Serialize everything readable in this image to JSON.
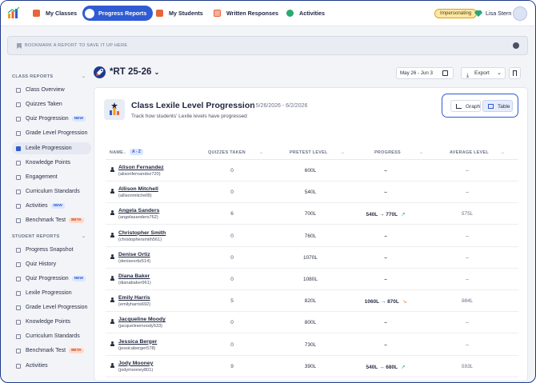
{
  "nav": {
    "items": [
      {
        "label": "My Classes",
        "icon": "classes-icon",
        "color": "#e8643a"
      },
      {
        "label": "Progress Reports",
        "icon": "progress-icon",
        "active": true
      },
      {
        "label": "My Students",
        "icon": "students-icon",
        "color": "#e8643a"
      },
      {
        "label": "Written Responses",
        "icon": "written-icon",
        "color": "#e8643a"
      },
      {
        "label": "Activities",
        "icon": "activities-icon",
        "color": "#2aa874"
      }
    ],
    "impersonating": "Impersonating",
    "user_name": "Lisa Stern"
  },
  "bookmark_bar": {
    "text": "BOOKMARK A REPORT TO SAVE IT UP HERE"
  },
  "sidebar": {
    "class_reports_heading": "CLASS REPORTS",
    "class_reports": [
      {
        "label": "Class Overview"
      },
      {
        "label": "Quizzes Taken"
      },
      {
        "label": "Quiz Progression",
        "tag": "NEW"
      },
      {
        "label": "Grade Level Progression"
      },
      {
        "label": "Lexile Progression",
        "active": true
      },
      {
        "label": "Knowledge Points"
      },
      {
        "label": "Engagement"
      },
      {
        "label": "Curriculum Standards"
      },
      {
        "label": "Activities",
        "tag": "NEW"
      },
      {
        "label": "Benchmark Test",
        "tag": "BETA"
      }
    ],
    "student_reports_heading": "STUDENT REPORTS",
    "student_reports": [
      {
        "label": "Progress Snapshot"
      },
      {
        "label": "Quiz History"
      },
      {
        "label": "Quiz Progression",
        "tag": "NEW"
      },
      {
        "label": "Lexile Progression"
      },
      {
        "label": "Grade Level Progression"
      },
      {
        "label": "Knowledge Points"
      },
      {
        "label": "Curriculum Standards"
      },
      {
        "label": "Benchmark Test",
        "tag": "BETA"
      },
      {
        "label": "Activities"
      }
    ]
  },
  "report": {
    "class_title": "*RT 25-26",
    "date_range": "May 26 - Jun 3",
    "export_label": "Export",
    "title": "Class Lexile Level Progression",
    "dates": "5/26/2026 - 6/2/2026",
    "subtitle": "Track how students' Lexile levels have progressed",
    "graph_label": "Graph",
    "table_label": "Table"
  },
  "table": {
    "headers": {
      "name": "NAME",
      "sort": "A - Z",
      "quizzes": "QUIZZES TAKEN",
      "pretest": "PRETEST LEVEL",
      "progress": "PROGRESS",
      "average": "AVERAGE LEVEL"
    },
    "rows": [
      {
        "name": "Alison Fernandez",
        "username": "(alisonfernandez720)",
        "quizzes": "0",
        "pretest": "600L",
        "progress": "–",
        "average": "–"
      },
      {
        "name": "Allison Mitchell",
        "username": "(allisonmitchell9)",
        "quizzes": "0",
        "pretest": "540L",
        "progress": "–",
        "average": "–"
      },
      {
        "name": "Angela Sanders",
        "username": "(angelasanders762)",
        "quizzes": "6",
        "pretest": "700L",
        "progress": "540L → 770L",
        "trend": "up",
        "average": "575L"
      },
      {
        "name": "Christopher Smith",
        "username": "(christophersmith561)",
        "quizzes": "0",
        "pretest": "760L",
        "progress": "–",
        "average": "–"
      },
      {
        "name": "Denise Ortiz",
        "username": "(deniseortiz514)",
        "quizzes": "0",
        "pretest": "1070L",
        "progress": "–",
        "average": "–"
      },
      {
        "name": "Diana Baker",
        "username": "(dianabaker961)",
        "quizzes": "0",
        "pretest": "1080L",
        "progress": "–",
        "average": "–"
      },
      {
        "name": "Emily Harris",
        "username": "(emilyharris692)",
        "quizzes": "5",
        "pretest": "820L",
        "progress": "1060L → 870L",
        "trend": "down",
        "average": "984L"
      },
      {
        "name": "Jacqueline Moody",
        "username": "(jacquelinemoody533)",
        "quizzes": "0",
        "pretest": "800L",
        "progress": "–",
        "average": "–"
      },
      {
        "name": "Jessica Berger",
        "username": "(jessicaberger578)",
        "quizzes": "0",
        "pretest": "730L",
        "progress": "–",
        "average": "–"
      },
      {
        "name": "Jody Mooney",
        "username": "(jodymooney801)",
        "quizzes": "9",
        "pretest": "390L",
        "progress": "540L → 680L",
        "trend": "up",
        "average": "593L"
      }
    ]
  }
}
